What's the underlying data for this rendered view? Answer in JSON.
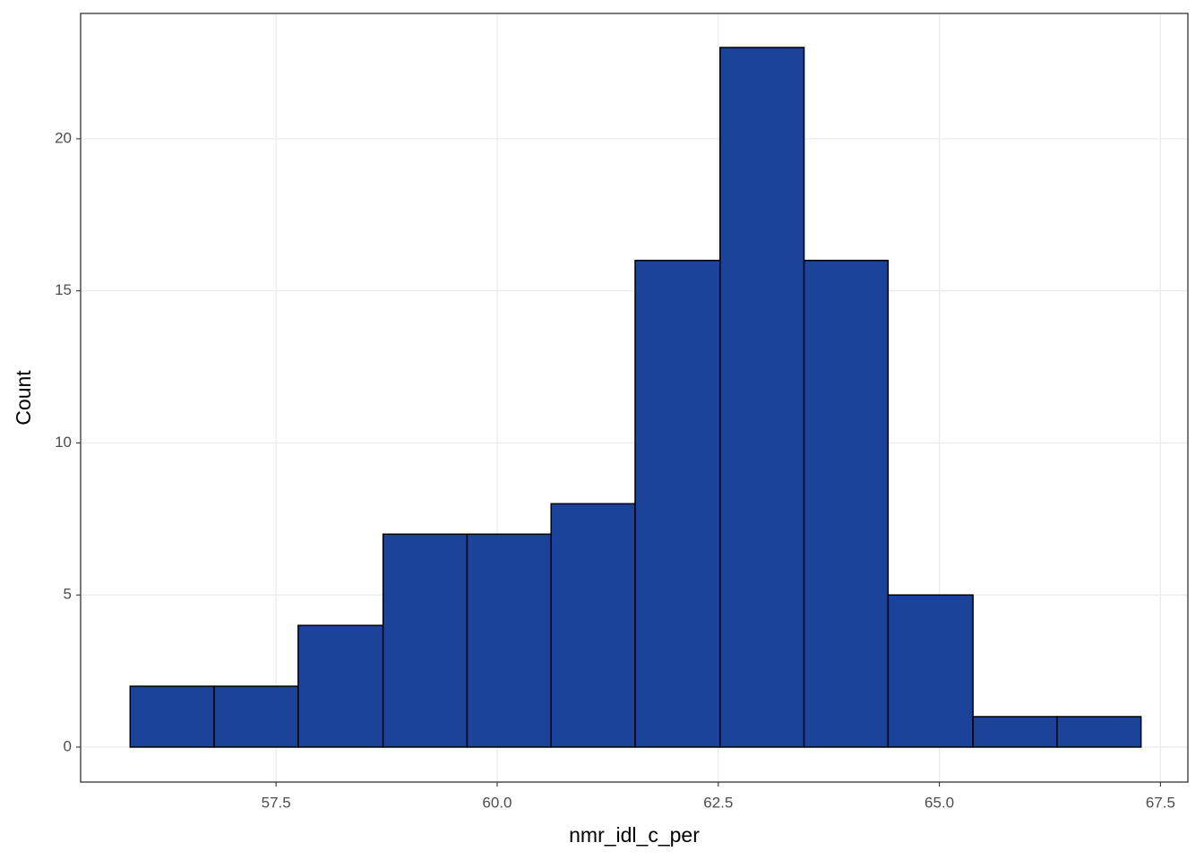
{
  "chart_data": {
    "type": "histogram",
    "x_label": "nmr_idl_c_per",
    "y_label": "Count",
    "bins": [
      55.85,
      56.8,
      57.75,
      58.71,
      59.66,
      60.61,
      61.56,
      62.52,
      63.47,
      64.42,
      65.38,
      66.33,
      67.28
    ],
    "values": [
      2,
      2,
      4,
      7,
      7,
      8,
      16,
      23,
      16,
      5,
      1,
      1
    ],
    "color": "#1a4399",
    "edge_color": "#000000",
    "xlim": [
      55.29,
      67.81
    ],
    "ylim": [
      -1.15,
      24.12
    ],
    "xticks": [
      {
        "value": 57.5,
        "label": "57.5"
      },
      {
        "value": 60.0,
        "label": "60.0"
      },
      {
        "value": 62.5,
        "label": "62.5"
      },
      {
        "value": 65.0,
        "label": "65.0"
      },
      {
        "value": 67.5,
        "label": "67.5"
      }
    ],
    "yticks": [
      0,
      5,
      10,
      15,
      20
    ],
    "grid": true
  }
}
